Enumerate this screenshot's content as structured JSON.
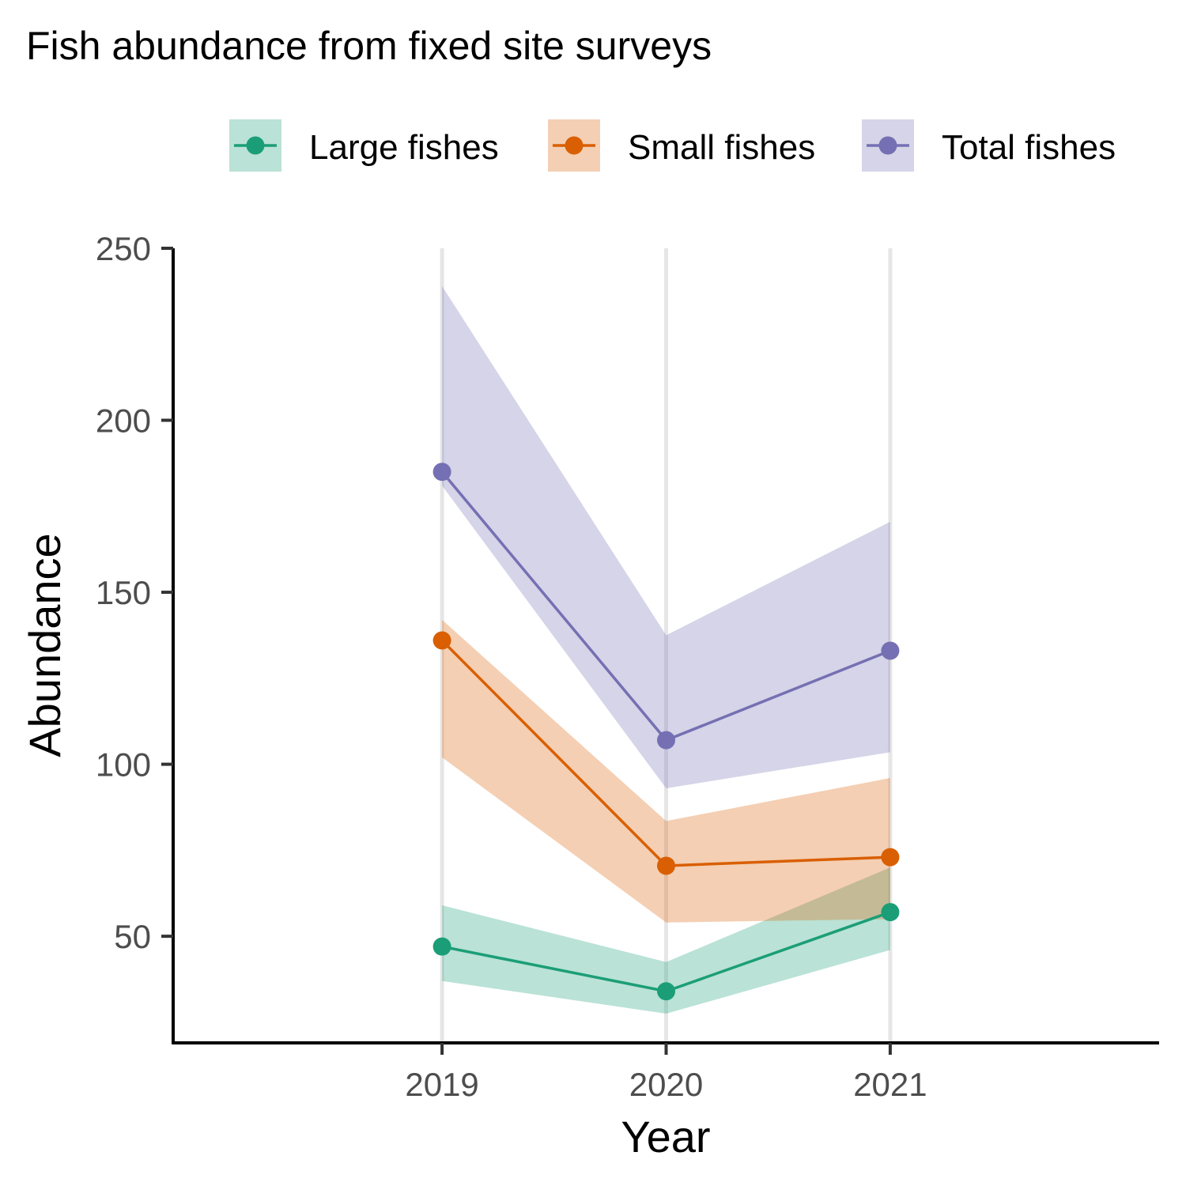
{
  "chart_data": {
    "type": "line",
    "title": "Fish abundance from fixed site surveys",
    "xlabel": "Year",
    "ylabel": "Abundance",
    "x": [
      2019,
      2020,
      2021
    ],
    "x_tick_labels": [
      "2019",
      "2020",
      "2021"
    ],
    "xlim": [
      2017.8,
      2022.2
    ],
    "y_ticks": [
      50,
      100,
      150,
      200,
      250
    ],
    "ylim": [
      19,
      250
    ],
    "grid": "vertical major gridlines only",
    "legend_position": "top-right",
    "series": [
      {
        "name": "Large fishes",
        "color": "#1b9e77",
        "values": [
          47,
          34,
          57
        ],
        "lower": [
          37,
          27.5,
          46
        ],
        "upper": [
          59,
          42.5,
          70
        ]
      },
      {
        "name": "Small fishes",
        "color": "#d95f02",
        "values": [
          136,
          70.5,
          73
        ],
        "lower": [
          102,
          54,
          55
        ],
        "upper": [
          142,
          83.5,
          96
        ]
      },
      {
        "name": "Total fishes",
        "color": "#7570b3",
        "values": [
          185,
          107,
          133
        ],
        "lower": [
          181,
          93,
          103.5
        ],
        "upper": [
          239,
          137.5,
          170.5
        ]
      }
    ]
  }
}
